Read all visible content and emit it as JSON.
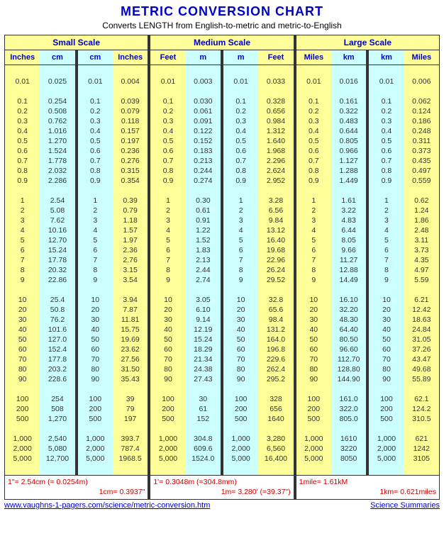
{
  "title": "METRIC  CONVERSION  CHART",
  "subtitle": "Converts LENGTH from English-to-metric and metric-to-English",
  "sections": [
    {
      "name": "Small Scale",
      "headers": [
        "Inches",
        "cm",
        "cm",
        "Inches"
      ],
      "footnote_l": "1\"= 2.54cm (= 0.0254m)",
      "footnote_r": "1cm= 0.3937\""
    },
    {
      "name": "Medium Scale",
      "headers": [
        "Feet",
        "m",
        "m",
        "Feet"
      ],
      "footnote_l": "1'= 0.3048m (=304.8mm)",
      "footnote_r": "1m= 3.280' (=39.37\")"
    },
    {
      "name": "Large Scale",
      "headers": [
        "Miles",
        "km",
        "km",
        "Miles"
      ],
      "footnote_l": "1mile= 1.61kM",
      "footnote_r": "1km= 0.621miles"
    }
  ],
  "inputs_a": [
    "0.01"
  ],
  "inputs_b": [
    "0.1",
    "0.2",
    "0.3",
    "0.4",
    "0.5",
    "0.6",
    "0.7",
    "0.8",
    "0.9"
  ],
  "inputs_c": [
    "1",
    "2",
    "3",
    "4",
    "5",
    "6",
    "7",
    "8",
    "9"
  ],
  "inputs_d": [
    "10",
    "20",
    "30",
    "40",
    "50",
    "60",
    "70",
    "80",
    "90"
  ],
  "inputs_e": [
    "100",
    "200",
    "500"
  ],
  "inputs_f": [
    "1,000",
    "2,000",
    "5,000"
  ],
  "conversions": {
    "in_cm": {
      "a": [
        "0.025"
      ],
      "b": [
        "0.254",
        "0.508",
        "0.762",
        "1.016",
        "1.270",
        "1.524",
        "1.778",
        "2.032",
        "2.286"
      ],
      "c": [
        "2.54",
        "5.08",
        "7.62",
        "10.16",
        "12.70",
        "15.24",
        "17.78",
        "20.32",
        "22.86"
      ],
      "d": [
        "25.4",
        "50.8",
        "76.2",
        "101.6",
        "127.0",
        "152.4",
        "177.8",
        "203.2",
        "228.6"
      ],
      "e": [
        "254",
        "508",
        "1,270"
      ],
      "f": [
        "2,540",
        "5,080",
        "12,700"
      ]
    },
    "cm_in": {
      "a": [
        "0.004"
      ],
      "b": [
        "0.039",
        "0.079",
        "0.118",
        "0.157",
        "0.197",
        "0.236",
        "0.276",
        "0.315",
        "0.354"
      ],
      "c": [
        "0.39",
        "0.79",
        "1.18",
        "1.57",
        "1.97",
        "2.36",
        "2.76",
        "3.15",
        "3.54"
      ],
      "d": [
        "3.94",
        "7.87",
        "11.81",
        "15.75",
        "19.69",
        "23.62",
        "27.56",
        "31.50",
        "35.43"
      ],
      "e": [
        "39",
        "79",
        "197"
      ],
      "f": [
        "393.7",
        "787.4",
        "1968.5"
      ]
    },
    "ft_m": {
      "a": [
        "0.003"
      ],
      "b": [
        "0.030",
        "0.061",
        "0.091",
        "0.122",
        "0.152",
        "0.183",
        "0.213",
        "0.244",
        "0.274"
      ],
      "c": [
        "0.30",
        "0.61",
        "0.91",
        "1.22",
        "1.52",
        "1.83",
        "2.13",
        "2.44",
        "2.74"
      ],
      "d": [
        "3.05",
        "6.10",
        "9.14",
        "12.19",
        "15.24",
        "18.29",
        "21.34",
        "24.38",
        "27.43"
      ],
      "e": [
        "30",
        "61",
        "152"
      ],
      "f": [
        "304.8",
        "609.6",
        "1524.0"
      ]
    },
    "m_ft": {
      "a": [
        "0.033"
      ],
      "b": [
        "0.328",
        "0.656",
        "0.984",
        "1.312",
        "1.640",
        "1.968",
        "2.296",
        "2.624",
        "2.952"
      ],
      "c": [
        "3.28",
        "6.56",
        "9.84",
        "13.12",
        "16.40",
        "19.68",
        "22.96",
        "26.24",
        "29.52"
      ],
      "d": [
        "32.8",
        "65.6",
        "98.4",
        "131.2",
        "164.0",
        "196.8",
        "229.6",
        "262.4",
        "295.2"
      ],
      "e": [
        "328",
        "656",
        "1640"
      ],
      "f": [
        "3,280",
        "6,560",
        "16,400"
      ]
    },
    "mi_km": {
      "a": [
        "0.016"
      ],
      "b": [
        "0.161",
        "0.322",
        "0.483",
        "0.644",
        "0.805",
        "0.966",
        "1.127",
        "1.288",
        "1.449"
      ],
      "c": [
        "1.61",
        "3.22",
        "4.83",
        "6.44",
        "8.05",
        "9.66",
        "11.27",
        "12.88",
        "14.49"
      ],
      "d": [
        "16.10",
        "32.20",
        "48.30",
        "64.40",
        "80.50",
        "96.60",
        "112.70",
        "128.80",
        "144.90"
      ],
      "e": [
        "161.0",
        "322.0",
        "805.0"
      ],
      "f": [
        "1610",
        "3220",
        "8050"
      ]
    },
    "km_mi": {
      "a": [
        "0.006"
      ],
      "b": [
        "0.062",
        "0.124",
        "0.186",
        "0.248",
        "0.311",
        "0.373",
        "0.435",
        "0.497",
        "0.559"
      ],
      "c": [
        "0.62",
        "1.24",
        "1.86",
        "2.48",
        "3.11",
        "3.73",
        "4.35",
        "4.97",
        "5.59"
      ],
      "d": [
        "6.21",
        "12.42",
        "18.63",
        "24.84",
        "31.05",
        "37.26",
        "43.47",
        "49.68",
        "55.89"
      ],
      "e": [
        "62.1",
        "124.2",
        "310.5"
      ],
      "f": [
        "621",
        "1242",
        "3105"
      ]
    }
  },
  "link_left": "www.vaughns-1-pagers.com/science/metric-conversion.htm",
  "link_right": "Science Summaries",
  "colors": {
    "yellow": "#ffff99",
    "cyan": "#ccffff",
    "blue_text": "#0000cc",
    "red_text": "#cc0000",
    "border": "#333333"
  }
}
